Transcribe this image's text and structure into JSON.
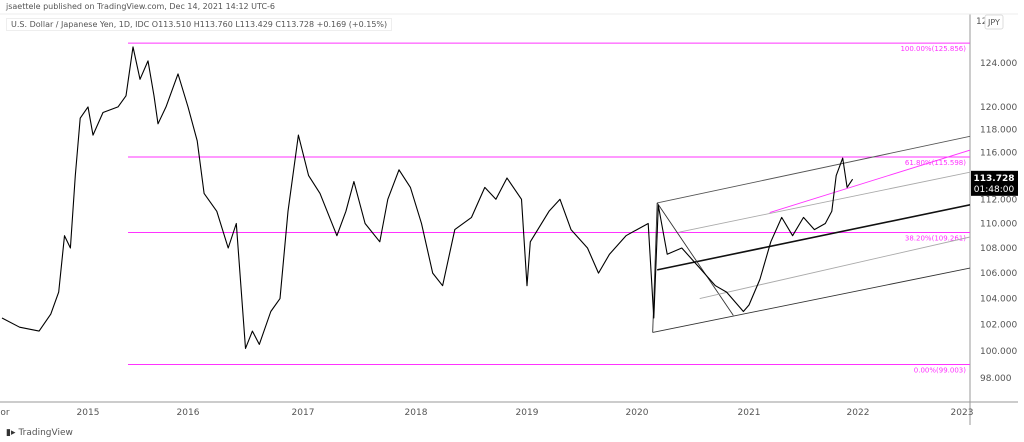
{
  "header": {
    "publisher": "jsaettele published on TradingView.com, Dec 14, 2021 14:12 UTC-6",
    "legend": "U.S. Dollar / Japanese Yen, 1D, IDC  O113.510  H113.760  L113.429  C113.728  +0.169 (+0.15%)"
  },
  "footer": {
    "logo": "TradingView"
  },
  "chart_data": {
    "type": "line",
    "symbol": "USDJPY",
    "currency_badge": "JPY",
    "scale": "log",
    "ylim": [
      97,
      126.5
    ],
    "xlim": [
      2014.1,
      2023.08
    ],
    "y_ticks": [
      "124.000",
      "120.000",
      "118.000",
      "116.000",
      "112.000",
      "110.000",
      "108.000",
      "106.000",
      "104.000",
      "102.000",
      "100.000",
      "98.000"
    ],
    "y_tick_partial": "12",
    "x_ticks": [
      {
        "label": "or",
        "year": 2014.1
      },
      {
        "label": "2015",
        "year": 2015
      },
      {
        "label": "2016",
        "year": 2016
      },
      {
        "label": "2017",
        "year": 2017
      },
      {
        "label": "2018",
        "year": 2018
      },
      {
        "label": "2019",
        "year": 2019
      },
      {
        "label": "2020",
        "year": 2020
      },
      {
        "label": "2021",
        "year": 2021
      },
      {
        "label": "2022",
        "year": 2022
      },
      {
        "label": "2023",
        "year": 2023
      }
    ],
    "last_price": {
      "value": "113.728",
      "countdown": "01:48:00",
      "price": 113.728
    },
    "series": [
      {
        "color": "#000000",
        "points": [
          [
            2014.12,
            102.5
          ],
          [
            2014.3,
            101.8
          ],
          [
            2014.5,
            101.5
          ],
          [
            2014.62,
            102.8
          ],
          [
            2014.7,
            104.5
          ],
          [
            2014.76,
            109
          ],
          [
            2014.82,
            108
          ],
          [
            2014.87,
            114
          ],
          [
            2014.92,
            119
          ],
          [
            2015.0,
            120
          ],
          [
            2015.05,
            117.5
          ],
          [
            2015.15,
            119.5
          ],
          [
            2015.3,
            120
          ],
          [
            2015.38,
            121
          ],
          [
            2015.45,
            125.5
          ],
          [
            2015.52,
            122.5
          ],
          [
            2015.6,
            124.2
          ],
          [
            2015.66,
            121
          ],
          [
            2015.7,
            118.5
          ],
          [
            2015.78,
            120
          ],
          [
            2015.9,
            123
          ],
          [
            2016.0,
            120
          ],
          [
            2016.08,
            117
          ],
          [
            2016.14,
            112.5
          ],
          [
            2016.25,
            111
          ],
          [
            2016.35,
            108
          ],
          [
            2016.42,
            110
          ],
          [
            2016.5,
            100.2
          ],
          [
            2016.56,
            101.5
          ],
          [
            2016.62,
            100.5
          ],
          [
            2016.72,
            103
          ],
          [
            2016.8,
            104
          ],
          [
            2016.87,
            111
          ],
          [
            2016.96,
            117.5
          ],
          [
            2017.05,
            114
          ],
          [
            2017.15,
            112.5
          ],
          [
            2017.3,
            109
          ],
          [
            2017.38,
            111
          ],
          [
            2017.45,
            113.5
          ],
          [
            2017.55,
            110
          ],
          [
            2017.68,
            108.5
          ],
          [
            2017.75,
            112
          ],
          [
            2017.85,
            114.5
          ],
          [
            2017.95,
            113
          ],
          [
            2018.05,
            110
          ],
          [
            2018.15,
            106
          ],
          [
            2018.24,
            105
          ],
          [
            2018.35,
            109.5
          ],
          [
            2018.5,
            110.5
          ],
          [
            2018.62,
            113
          ],
          [
            2018.72,
            112
          ],
          [
            2018.82,
            113.8
          ],
          [
            2018.95,
            112
          ],
          [
            2019.0,
            105
          ],
          [
            2019.03,
            108.5
          ],
          [
            2019.2,
            111
          ],
          [
            2019.3,
            112
          ],
          [
            2019.4,
            109.5
          ],
          [
            2019.55,
            108
          ],
          [
            2019.65,
            106
          ],
          [
            2019.75,
            107.5
          ],
          [
            2019.9,
            109
          ],
          [
            2020.0,
            109.5
          ],
          [
            2020.1,
            110
          ],
          [
            2020.15,
            102.5
          ],
          [
            2020.19,
            111.5
          ],
          [
            2020.27,
            107.5
          ],
          [
            2020.4,
            108
          ],
          [
            2020.55,
            106.5
          ],
          [
            2020.7,
            105
          ],
          [
            2020.8,
            104.5
          ],
          [
            2020.95,
            103
          ],
          [
            2021.0,
            103.5
          ],
          [
            2021.1,
            105.5
          ],
          [
            2021.2,
            108.5
          ],
          [
            2021.3,
            110.5
          ],
          [
            2021.4,
            109
          ],
          [
            2021.5,
            110.5
          ],
          [
            2021.6,
            109.5
          ],
          [
            2021.7,
            110
          ],
          [
            2021.76,
            111
          ],
          [
            2021.8,
            114
          ],
          [
            2021.86,
            115.5
          ],
          [
            2021.9,
            113
          ],
          [
            2021.95,
            113.7
          ]
        ]
      }
    ],
    "fib_levels": [
      {
        "label": "100.00%(125.856)",
        "price": 125.856
      },
      {
        "label": "61.80%(115.598)",
        "price": 115.598
      },
      {
        "label": "38.20%(109.261)",
        "price": 109.261
      },
      {
        "label": "0.00%(99.003)",
        "price": 99.003
      }
    ],
    "fib_start_year": 2015.4,
    "fib_color": "#ff33ff",
    "drawings": [
      {
        "kind": "pitchfork-upper",
        "color": "#555555",
        "from": [
          2020.18,
          111.7
        ],
        "to": [
          2023.08,
          117.4
        ]
      },
      {
        "kind": "pitchfork-median",
        "color": "#111111",
        "from": [
          2020.18,
          106.25
        ],
        "to": [
          2023.08,
          111.55
        ]
      },
      {
        "kind": "pitchfork-lower",
        "color": "#333333",
        "from": [
          2020.14,
          101.4
        ],
        "to": [
          2023.08,
          106.4
        ]
      },
      {
        "kind": "pitchfork-handle",
        "color": "#333333",
        "from": [
          2020.14,
          101.4
        ],
        "to": [
          2020.18,
          111.7
        ]
      },
      {
        "kind": "pitchfork-handle",
        "color": "#333333",
        "from": [
          2020.18,
          111.7
        ],
        "to": [
          2020.86,
          102.7
        ]
      },
      {
        "kind": "warning-line",
        "color": "#aaaaaa",
        "from": [
          2020.38,
          109.3
        ],
        "to": [
          2023.08,
          114.3
        ]
      },
      {
        "kind": "warning-line",
        "color": "#aaaaaa",
        "from": [
          2020.56,
          104.0
        ],
        "to": [
          2023.08,
          108.9
        ]
      },
      {
        "kind": "trendline",
        "color": "#ff33ff",
        "from": [
          2021.19,
          110.9
        ],
        "to": [
          2023.08,
          116.2
        ]
      }
    ]
  }
}
